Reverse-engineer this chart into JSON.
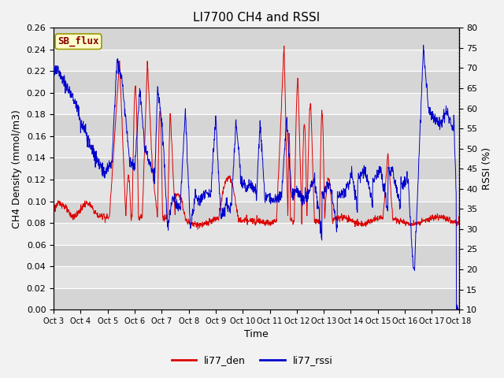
{
  "title": "LI7700 CH4 and RSSI",
  "xlabel": "Time",
  "ylabel_left": "CH4 Density (mmol/m3)",
  "ylabel_right": "RSSI (%)",
  "ylim_left": [
    0.0,
    0.26
  ],
  "ylim_right": [
    10,
    80
  ],
  "yticks_left": [
    0.0,
    0.02,
    0.04,
    0.06,
    0.08,
    0.1,
    0.12,
    0.14,
    0.16,
    0.18,
    0.2,
    0.22,
    0.24,
    0.26
  ],
  "yticks_right": [
    10,
    15,
    20,
    25,
    30,
    35,
    40,
    45,
    50,
    55,
    60,
    65,
    70,
    75,
    80
  ],
  "xtick_labels": [
    "Oct 3",
    "Oct 4",
    "Oct 5",
    "Oct 6",
    "Oct 7",
    "Oct 8",
    "Oct 9",
    "Oct 10",
    "Oct 11",
    "Oct 12",
    "Oct 13",
    "Oct 14",
    "Oct 15",
    "Oct 16",
    "Oct 17",
    "Oct 18"
  ],
  "color_ch4": "#dd0000",
  "color_rssi": "#0000cc",
  "legend_label_ch4": "li77_den",
  "legend_label_rssi": "li77_rssi",
  "sitelab": "SB_flux",
  "plot_bg": "#e0e0e0",
  "fig_bg": "#f2f2f2",
  "grid_color": "#ffffff",
  "title_fontsize": 11,
  "axis_label_fontsize": 9,
  "tick_fontsize": 8,
  "legend_fontsize": 9,
  "n_days": 16,
  "n_per_day": 96
}
